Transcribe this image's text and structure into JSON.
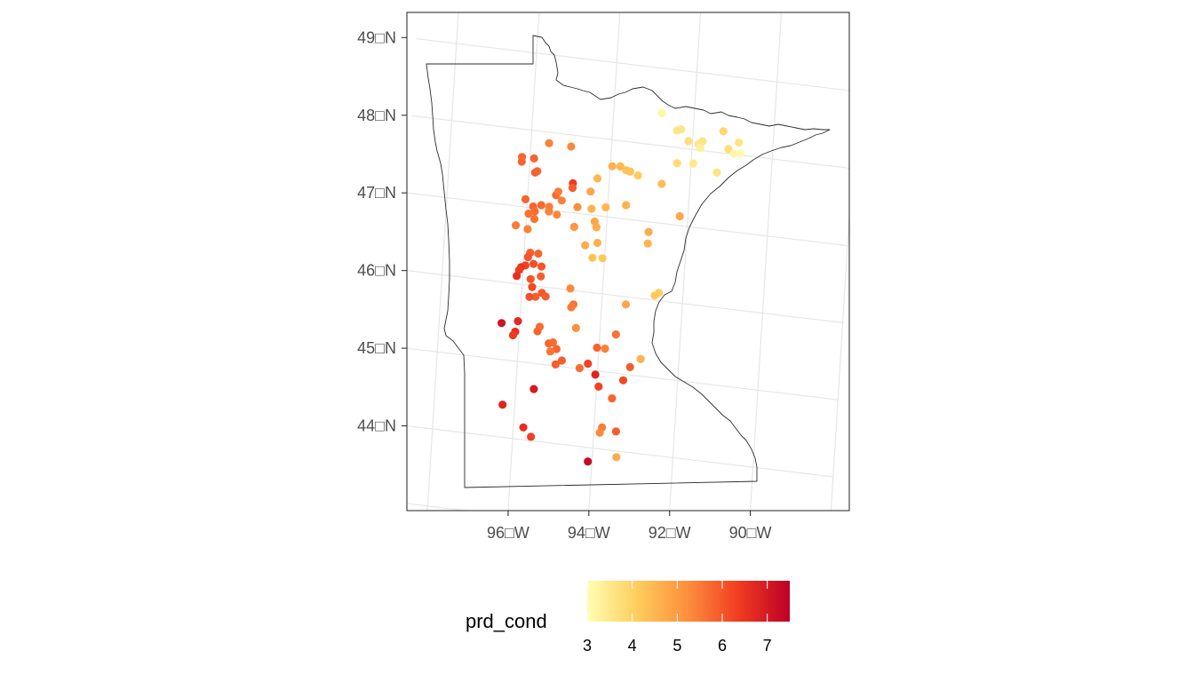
{
  "chart_data": {
    "type": "scatter",
    "map": "Minnesota",
    "color_variable": "prd_cond",
    "projection_note": "lon/lat graticule",
    "xlim": [
      -97.5,
      -89.8
    ],
    "ylim": [
      43.2,
      49.7
    ],
    "x_ticks": [
      {
        "value": -96,
        "label": "96□W"
      },
      {
        "value": -94,
        "label": "94□W"
      },
      {
        "value": -92,
        "label": "92□W"
      },
      {
        "value": -90,
        "label": "90□W"
      }
    ],
    "y_ticks": [
      {
        "value": 44,
        "label": "44□N"
      },
      {
        "value": 45,
        "label": "45□N"
      },
      {
        "value": 46,
        "label": "46□N"
      },
      {
        "value": 47,
        "label": "47□N"
      },
      {
        "value": 48,
        "label": "48□N"
      },
      {
        "value": 49,
        "label": "49□N"
      }
    ],
    "grid": true,
    "legend": {
      "title": "prd_cond",
      "position": "bottom",
      "range": [
        3,
        7.5
      ],
      "ticks": [
        "3",
        "4",
        "5",
        "6",
        "7"
      ],
      "colors": [
        "#ffffb2",
        "#fecc5c",
        "#fd8d3c",
        "#f03b20",
        "#bd0026"
      ]
    },
    "points": [
      [
        -92.8,
        48.42,
        3.2
      ],
      [
        -92.4,
        48.22,
        3.6
      ],
      [
        -92.3,
        48.24,
        3.6
      ],
      [
        -92.1,
        48.1,
        3.7
      ],
      [
        -91.85,
        48.08,
        3.5
      ],
      [
        -91.75,
        48.12,
        3.6
      ],
      [
        -91.8,
        48.03,
        3.3
      ],
      [
        -91.25,
        48.28,
        3.9
      ],
      [
        -91.1,
        48.06,
        3.7
      ],
      [
        -90.85,
        48.16,
        3.6
      ],
      [
        -90.95,
        48.01,
        3.2
      ],
      [
        -90.8,
        48.02,
        3.1
      ],
      [
        -91.95,
        47.82,
        3.5
      ],
      [
        -92.35,
        47.8,
        3.8
      ],
      [
        -91.35,
        47.74,
        3.6
      ],
      [
        -93.3,
        47.58,
        4.1
      ],
      [
        -93.6,
        47.63,
        4.3
      ],
      [
        -93.75,
        47.67,
        4.5
      ],
      [
        -93.5,
        47.62,
        4.3
      ],
      [
        -93.95,
        47.66,
        4.6
      ],
      [
        -94.3,
        47.48,
        4.5
      ],
      [
        -94.45,
        47.3,
        4.8
      ],
      [
        -92.7,
        47.51,
        4.4
      ],
      [
        -93.55,
        47.18,
        4.6
      ],
      [
        -94.05,
        47.12,
        4.5
      ],
      [
        -94.4,
        47.08,
        4.6
      ],
      [
        -92.2,
        47.12,
        4.8
      ],
      [
        -92.95,
        46.87,
        4.7
      ],
      [
        -92.95,
        46.72,
        4.6
      ],
      [
        -94.3,
        46.92,
        4.8
      ],
      [
        -94.25,
        46.85,
        4.7
      ],
      [
        -94.5,
        46.6,
        4.7
      ],
      [
        -94.2,
        46.65,
        4.6
      ],
      [
        -94.3,
        46.45,
        4.3
      ],
      [
        -94.05,
        46.46,
        4.2
      ],
      [
        -92.7,
        46.06,
        4.2
      ],
      [
        -92.6,
        46.1,
        4.1
      ],
      [
        -93.4,
        45.9,
        4.8
      ],
      [
        -92.95,
        45.22,
        4.6
      ],
      [
        -93.4,
        43.92,
        4.7
      ],
      [
        -96.2,
        47.64,
        5.8
      ],
      [
        -96.2,
        47.58,
        5.8
      ],
      [
        -95.9,
        47.64,
        5.8
      ],
      [
        -95.85,
        47.46,
        5.9
      ],
      [
        -95.8,
        47.48,
        5.8
      ],
      [
        -95.55,
        47.86,
        5.4
      ],
      [
        -95.0,
        47.85,
        5.3
      ],
      [
        -95.3,
        47.2,
        5.7
      ],
      [
        -95.25,
        47.25,
        5.5
      ],
      [
        -95.15,
        47.14,
        5.4
      ],
      [
        -94.9,
        47.38,
        6.4
      ],
      [
        -94.9,
        47.32,
        5.9
      ],
      [
        -95.45,
        47.04,
        5.5
      ],
      [
        -95.65,
        47.05,
        5.7
      ],
      [
        -95.85,
        47.02,
        5.8
      ],
      [
        -95.8,
        46.96,
        5.7
      ],
      [
        -95.95,
        46.92,
        5.6
      ],
      [
        -96.05,
        47.1,
        5.8
      ],
      [
        -95.25,
        46.95,
        5.3
      ],
      [
        -95.45,
        46.98,
        5.4
      ],
      [
        -94.75,
        47.08,
        5.2
      ],
      [
        -94.8,
        46.82,
        5.1
      ],
      [
        -95.8,
        46.86,
        5.6
      ],
      [
        -95.95,
        46.72,
        5.4
      ],
      [
        -96.25,
        46.75,
        5.5
      ],
      [
        -95.65,
        46.42,
        5.8
      ],
      [
        -95.85,
        46.42,
        5.9
      ],
      [
        -95.9,
        46.36,
        6.0
      ],
      [
        -95.75,
        46.28,
        6.1
      ],
      [
        -95.55,
        46.26,
        6.0
      ],
      [
        -95.95,
        46.25,
        6.3
      ],
      [
        -96.05,
        46.22,
        6.5
      ],
      [
        -96.1,
        46.18,
        6.4
      ],
      [
        -96.15,
        46.1,
        6.6
      ],
      [
        -95.8,
        46.08,
        6.0
      ],
      [
        -95.75,
        45.98,
        6.2
      ],
      [
        -95.65,
        45.86,
        5.9
      ],
      [
        -95.8,
        45.85,
        6.1
      ],
      [
        -95.5,
        45.92,
        6.0
      ],
      [
        -95.4,
        45.88,
        5.9
      ],
      [
        -95.55,
        46.13,
        5.9
      ],
      [
        -94.8,
        46.02,
        5.3
      ],
      [
        -94.7,
        45.82,
        5.6
      ],
      [
        -94.75,
        45.78,
        5.5
      ],
      [
        -94.6,
        45.52,
        5.2
      ],
      [
        -95.55,
        45.42,
        5.8
      ],
      [
        -95.5,
        45.48,
        5.7
      ],
      [
        -95.25,
        45.28,
        5.8
      ],
      [
        -95.15,
        45.3,
        5.7
      ],
      [
        -95.05,
        45.22,
        5.8
      ],
      [
        -94.9,
        45.08,
        5.9
      ],
      [
        -95.2,
        45.18,
        5.6
      ],
      [
        -95.05,
        45.02,
        5.9
      ],
      [
        -94.45,
        45.01,
        5.7
      ],
      [
        -94.25,
        45.08,
        6.3
      ],
      [
        -94.05,
        45.3,
        5.8
      ],
      [
        -93.85,
        45.3,
        5.4
      ],
      [
        -93.6,
        45.5,
        5.6
      ],
      [
        -93.2,
        45.1,
        5.9
      ],
      [
        -93.35,
        44.92,
        6.2
      ],
      [
        -93.6,
        44.67,
        5.8
      ],
      [
        -93.95,
        44.8,
        6.3
      ],
      [
        -94.05,
        44.95,
        6.8
      ],
      [
        -93.8,
        44.28,
        5.5
      ],
      [
        -93.85,
        44.21,
        5.3
      ],
      [
        -93.45,
        44.25,
        5.9
      ],
      [
        -95.55,
        44.05,
        6.3
      ],
      [
        -95.75,
        44.16,
        6.6
      ],
      [
        -95.55,
        44.67,
        7.0
      ],
      [
        -96.3,
        44.42,
        6.8
      ],
      [
        -96.45,
        45.47,
        7.1
      ],
      [
        -96.05,
        45.52,
        6.7
      ],
      [
        -96.1,
        45.38,
        6.6
      ],
      [
        -96.15,
        45.33,
        6.4
      ],
      [
        -94.1,
        43.82,
        7.3
      ]
    ]
  }
}
